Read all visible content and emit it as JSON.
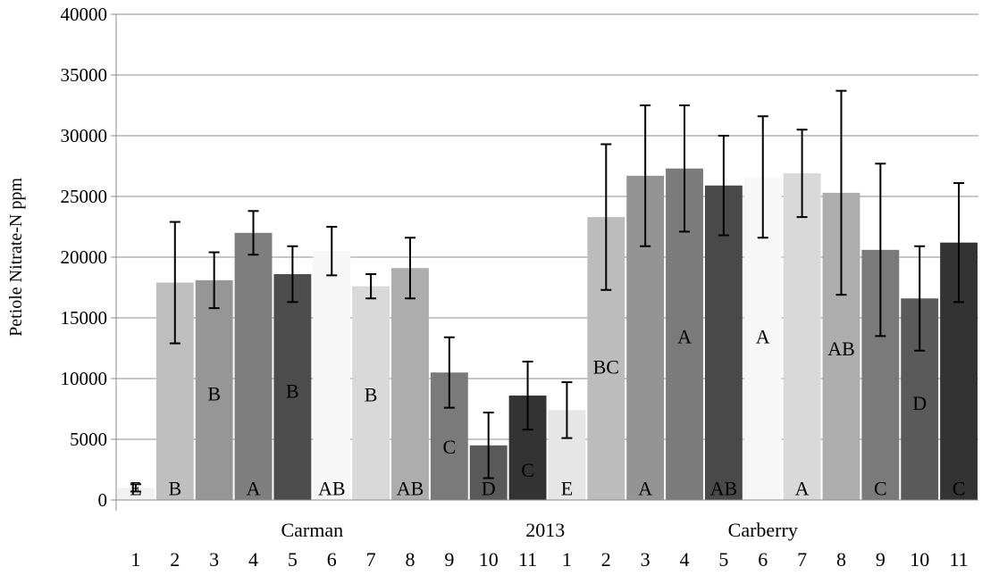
{
  "chart_data": {
    "type": "bar",
    "ylabel": "Petiole Nitrate-N ppm",
    "ylim": [
      0,
      40000
    ],
    "y_ticks": [
      0,
      5000,
      10000,
      15000,
      20000,
      25000,
      30000,
      35000,
      40000
    ],
    "grid": true,
    "legend": "none",
    "group_labels": [
      "Carman",
      "2013",
      "Carberry"
    ],
    "categories": [
      "1",
      "2",
      "3",
      "4",
      "5",
      "6",
      "7",
      "8",
      "9",
      "10",
      "11",
      "1",
      "2",
      "3",
      "4",
      "5",
      "6",
      "7",
      "8",
      "9",
      "10",
      "11"
    ],
    "values": [
      1000,
      17900,
      18100,
      22000,
      18600,
      20500,
      17600,
      19100,
      10500,
      4500,
      8600,
      7400,
      23300,
      26700,
      27300,
      25900,
      26600,
      26900,
      25300,
      20600,
      16600,
      21200
    ],
    "errors": [
      300,
      5000,
      2300,
      1800,
      2300,
      2000,
      1000,
      2500,
      2900,
      2700,
      2800,
      2300,
      6000,
      5800,
      5200,
      4100,
      5000,
      3600,
      8400,
      7100,
      4300,
      4900
    ],
    "letters": [
      "E",
      "B",
      "B",
      "A",
      "B",
      "AB",
      "B",
      "AB",
      "C",
      "D",
      "C",
      "E",
      "BC",
      "A",
      "A",
      "AB",
      "A",
      "A",
      "AB",
      "C",
      "D",
      "C"
    ],
    "letter_values": [
      1000,
      1000,
      8800,
      1000,
      9000,
      1000,
      8700,
      1000,
      4400,
      1000,
      2500,
      1000,
      11000,
      1000,
      13500,
      1000,
      13500,
      1000,
      12500,
      1000,
      8000,
      1000
    ],
    "colors": [
      "#f2f2f2",
      "#bfbfbf",
      "#969696",
      "#7f7f7f",
      "#4d4d4d",
      "#f7f7f7",
      "#d9d9d9",
      "#adadad",
      "#7a7a7a",
      "#5a5a5a",
      "#333333",
      "#e6e6e6",
      "#bcbcbc",
      "#949494",
      "#7b7b7b",
      "#494949",
      "#f7f7f7",
      "#d9d9d9",
      "#adadad",
      "#7a7a7a",
      "#5a5a5a",
      "#333333"
    ]
  }
}
